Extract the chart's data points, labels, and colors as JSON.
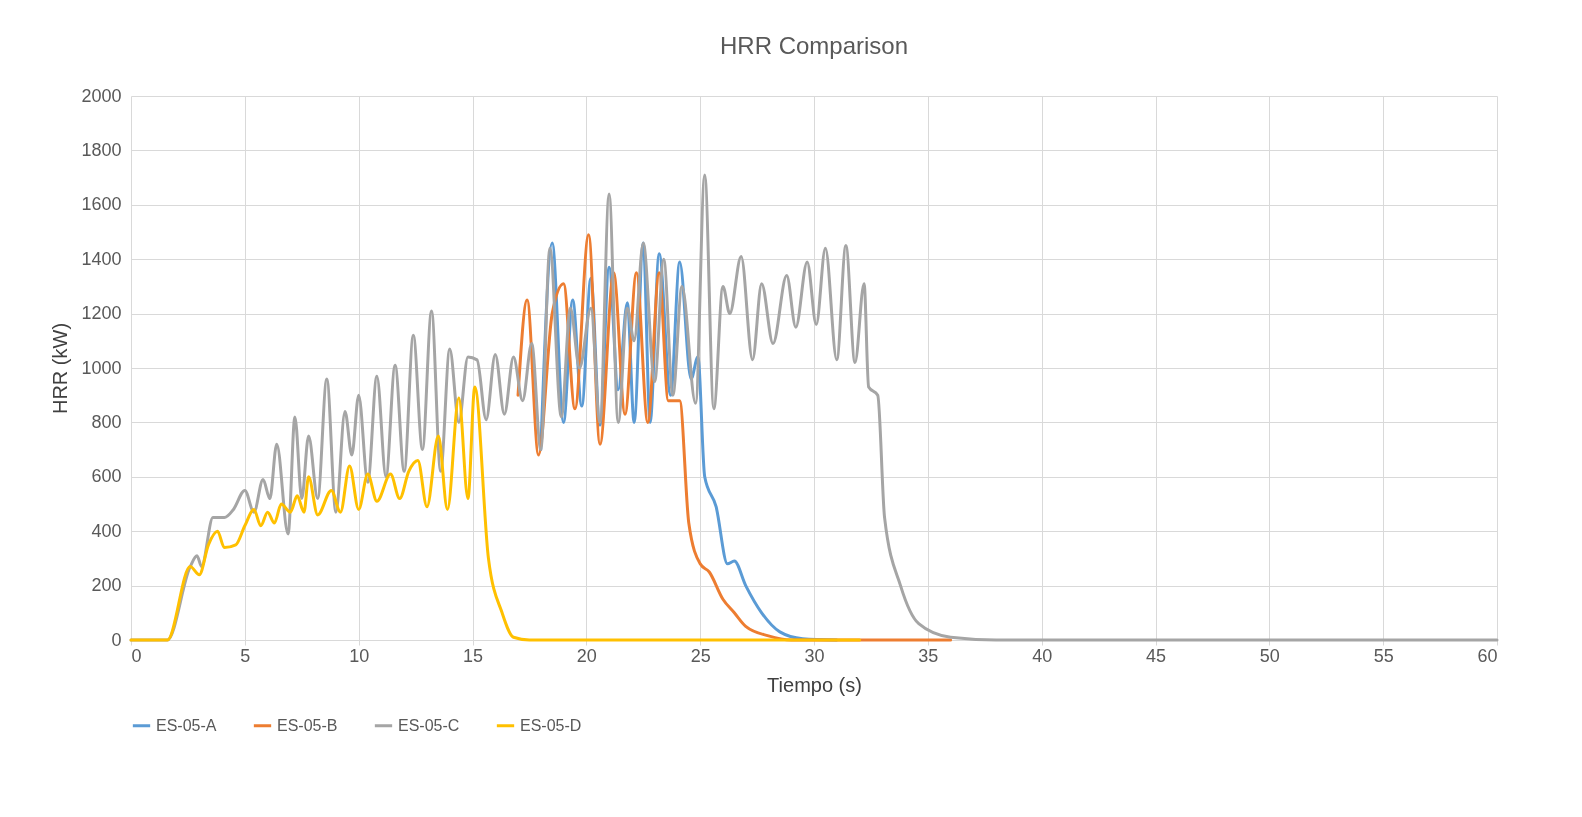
{
  "chart_data": {
    "type": "line",
    "title": "HRR Comparison",
    "xlabel": "Tiempo (s)",
    "ylabel": "HRR (kW)",
    "xlim": [
      0,
      60
    ],
    "xticks": [
      0,
      5,
      10,
      15,
      20,
      25,
      30,
      35,
      40,
      45,
      50,
      55,
      60
    ],
    "ylim": [
      0,
      2000
    ],
    "yticks": [
      0,
      200,
      400,
      600,
      800,
      1000,
      1200,
      1400,
      1600,
      1800,
      2000
    ],
    "grid": true,
    "legend": "bottom",
    "marker": "none",
    "line_style": "solid",
    "series": [
      {
        "name": "ES-05-A",
        "color": "#5b9bd5",
        "x": [
          18.0,
          18.5,
          19.0,
          19.4,
          19.8,
          20.2,
          20.6,
          21.0,
          21.4,
          21.8,
          22.1,
          22.5,
          22.8,
          23.2,
          23.7,
          24.1,
          24.6,
          24.9,
          25.2,
          25.7,
          26.2,
          26.5,
          27.0,
          27.7,
          28.5,
          29.5,
          31
        ],
        "values": [
          700,
          1460,
          800,
          1250,
          860,
          1330,
          790,
          1370,
          920,
          1240,
          800,
          1460,
          800,
          1420,
          900,
          1390,
          960,
          1040,
          600,
          490,
          280,
          290,
          200,
          100,
          30,
          5,
          0
        ]
      },
      {
        "name": "ES-05-B",
        "color": "#ed7d31",
        "x": [
          17.0,
          17.4,
          17.9,
          18.5,
          19.0,
          19.5,
          20.1,
          20.6,
          21.2,
          21.7,
          22.2,
          22.7,
          23.2,
          23.6,
          24.1,
          24.5,
          25.0,
          25.4,
          26.0,
          26.5,
          27.0,
          28.0,
          29.0,
          36
        ],
        "values": [
          900,
          1250,
          680,
          1200,
          1310,
          850,
          1490,
          720,
          1350,
          830,
          1350,
          800,
          1350,
          880,
          880,
          430,
          280,
          250,
          150,
          100,
          50,
          15,
          0,
          0
        ]
      },
      {
        "name": "ES-05-C",
        "color": "#a5a5a5",
        "x": [
          0,
          1.6,
          2.6,
          2.9,
          3.1,
          3.6,
          4.1,
          4.5,
          5.0,
          5.4,
          5.8,
          6.1,
          6.4,
          6.9,
          7.2,
          7.5,
          7.8,
          8.2,
          8.6,
          9.0,
          9.4,
          9.7,
          10.0,
          10.4,
          10.8,
          11.2,
          11.6,
          12.0,
          12.4,
          12.8,
          13.2,
          13.6,
          14.0,
          14.4,
          14.8,
          15.2,
          15.6,
          16.0,
          16.4,
          16.8,
          17.2,
          17.6,
          18.0,
          18.4,
          18.9,
          19.3,
          19.7,
          20.2,
          20.6,
          21.0,
          21.4,
          21.8,
          22.1,
          22.5,
          23.0,
          23.4,
          23.8,
          24.2,
          24.8,
          25.2,
          25.6,
          26.0,
          26.3,
          26.8,
          27.3,
          27.7,
          28.2,
          28.8,
          29.2,
          29.7,
          30.1,
          30.5,
          31.0,
          31.4,
          31.8,
          32.2,
          32.4,
          32.8,
          33.1,
          33.8,
          34.6,
          36,
          38,
          60
        ],
        "values": [
          0,
          0,
          270,
          310,
          270,
          450,
          450,
          480,
          550,
          470,
          590,
          520,
          720,
          390,
          820,
          520,
          750,
          520,
          960,
          470,
          840,
          680,
          900,
          580,
          970,
          600,
          1010,
          620,
          1120,
          700,
          1210,
          620,
          1070,
          800,
          1040,
          1030,
          810,
          1050,
          830,
          1040,
          880,
          1090,
          700,
          1440,
          820,
          1220,
          1000,
          1220,
          800,
          1640,
          800,
          1220,
          1100,
          1460,
          950,
          1400,
          900,
          1300,
          870,
          1710,
          850,
          1300,
          1200,
          1410,
          1030,
          1310,
          1090,
          1340,
          1150,
          1390,
          1160,
          1440,
          1030,
          1450,
          1020,
          1310,
          930,
          900,
          450,
          200,
          60,
          10,
          0,
          0
        ]
      },
      {
        "name": "ES-05-D",
        "color": "#ffc000",
        "x": [
          0,
          1.6,
          2.6,
          3.0,
          3.4,
          3.8,
          4.1,
          4.6,
          5.0,
          5.4,
          5.7,
          6.0,
          6.3,
          6.6,
          7.0,
          7.3,
          7.6,
          7.8,
          8.2,
          8.8,
          9.2,
          9.6,
          10.0,
          10.4,
          10.8,
          11.4,
          11.8,
          12.2,
          12.6,
          13.0,
          13.5,
          13.9,
          14.4,
          14.8,
          15.1,
          15.7,
          16.3,
          16.8,
          17.5,
          32
        ],
        "values": [
          0,
          0,
          270,
          240,
          350,
          400,
          340,
          350,
          420,
          480,
          420,
          470,
          430,
          500,
          470,
          530,
          470,
          600,
          460,
          550,
          470,
          640,
          480,
          610,
          510,
          610,
          520,
          620,
          660,
          490,
          750,
          480,
          890,
          520,
          930,
          300,
          100,
          10,
          0,
          0
        ]
      }
    ]
  }
}
